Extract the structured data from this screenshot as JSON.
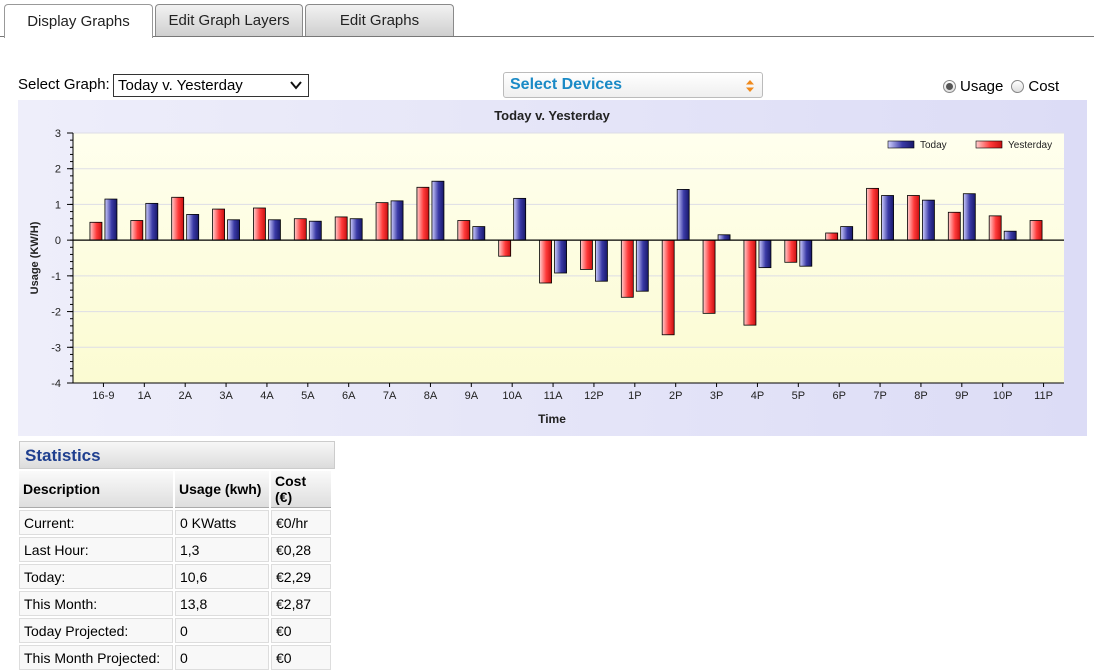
{
  "tabs": [
    {
      "label": "Display Graphs",
      "active": true
    },
    {
      "label": "Edit Graph Layers",
      "active": false
    },
    {
      "label": "Edit Graphs",
      "active": false
    }
  ],
  "controls": {
    "select_graph_label": "Select Graph:",
    "select_graph_value": "Today v. Yesterday",
    "select_devices_label": "Select Devices",
    "radio_usage_label": "Usage",
    "radio_cost_label": "Cost",
    "selected_radio": "usage"
  },
  "chart_data": {
    "type": "bar",
    "title": "Today v. Yesterday",
    "xlabel": "Time",
    "ylabel": "Usage (KW/H)",
    "ylim": [
      -4,
      3
    ],
    "yticks": [
      3,
      2,
      1,
      0,
      -1,
      -2,
      -3,
      -4
    ],
    "grid": true,
    "legend_position": "top-right",
    "categories": [
      "16-9",
      "1A",
      "2A",
      "3A",
      "4A",
      "5A",
      "6A",
      "7A",
      "8A",
      "9A",
      "10A",
      "11A",
      "12P",
      "1P",
      "2P",
      "3P",
      "4P",
      "5P",
      "6P",
      "7P",
      "8P",
      "9P",
      "10P",
      "11P"
    ],
    "series": [
      {
        "name": "Yesterday",
        "color": "#ff3030",
        "values": [
          0.5,
          0.55,
          1.2,
          0.87,
          0.9,
          0.6,
          0.65,
          1.05,
          1.48,
          0.55,
          -0.45,
          -1.2,
          -0.82,
          -1.6,
          -2.65,
          -2.05,
          -2.38,
          -0.62,
          0.2,
          1.45,
          1.25,
          0.78,
          0.68,
          0.55
        ]
      },
      {
        "name": "Today",
        "color": "#30309a",
        "values": [
          1.15,
          1.03,
          0.72,
          0.57,
          0.57,
          0.53,
          0.6,
          1.1,
          1.65,
          0.38,
          1.17,
          -0.92,
          -1.15,
          -1.43,
          1.42,
          0.15,
          -0.77,
          -0.73,
          0.38,
          1.25,
          1.12,
          1.3,
          0.25,
          null
        ]
      }
    ]
  },
  "statistics": {
    "title": "Statistics",
    "headers": [
      "Description",
      "Usage (kwh)",
      "Cost (€)"
    ],
    "rows": [
      [
        "Current:",
        "0 KWatts",
        "€0/hr"
      ],
      [
        "Last Hour:",
        "1,3",
        "€0,28"
      ],
      [
        "Today:",
        "10,6",
        "€2,29"
      ],
      [
        "This Month:",
        "13,8",
        "€2,87"
      ],
      [
        "Today Projected:",
        "0",
        "€0"
      ],
      [
        "This Month Projected:",
        "0",
        "€0"
      ]
    ]
  }
}
